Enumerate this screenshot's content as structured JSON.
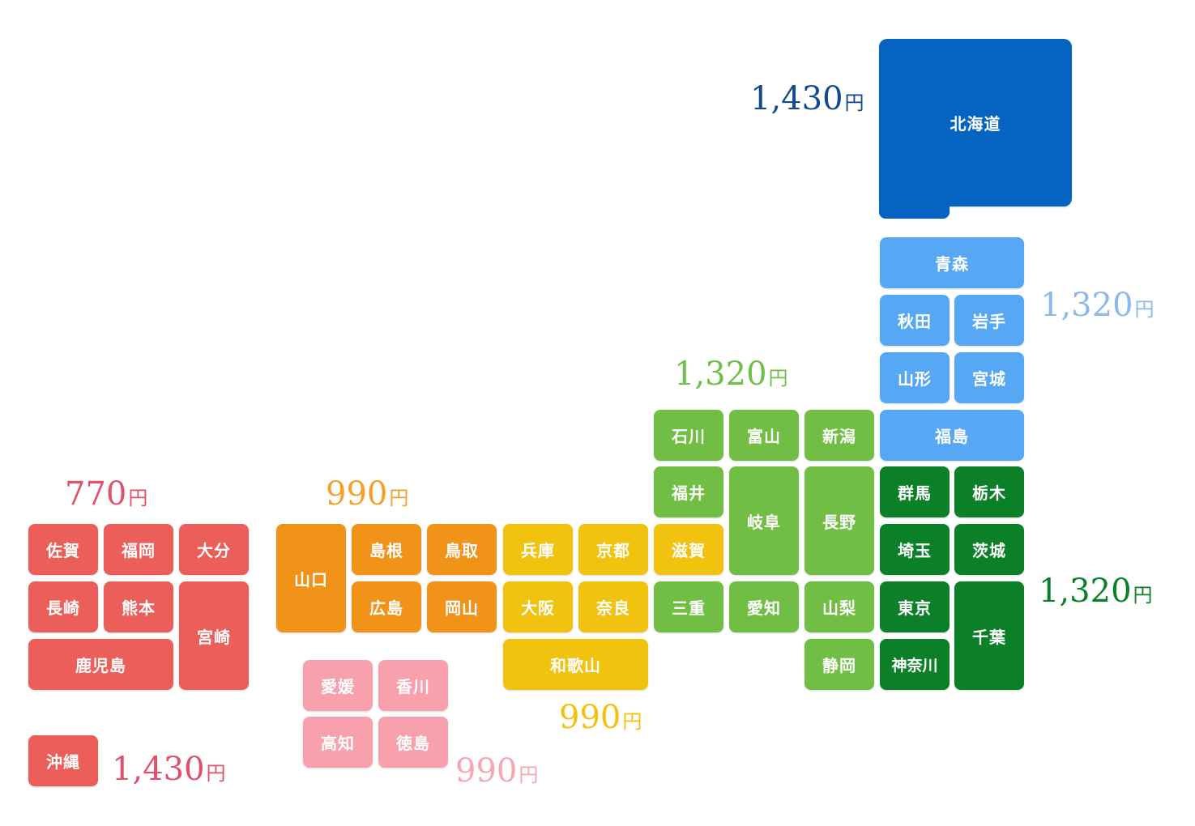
{
  "colors": {
    "hokkaido": "#0563c1",
    "tohoku": "#56a8f5",
    "kanto": "#0c8029",
    "chubu": "#70bf44",
    "kinki": "#f1c30e",
    "chugoku": "#f29319",
    "shikoku": "#f8a0ab",
    "kyushu": "#eb5e5a",
    "price_kyushu": "#e1516b"
  },
  "prices": {
    "hokkaido": {
      "value": "1,430",
      "unit": "円"
    },
    "tohoku": {
      "value": "1,320",
      "unit": "円"
    },
    "chubu": {
      "value": "1,320",
      "unit": "円"
    },
    "kanto": {
      "value": "1,320",
      "unit": "円"
    },
    "kinki": {
      "value": "990",
      "unit": "円"
    },
    "chugoku": {
      "value": "990",
      "unit": "円"
    },
    "shikoku": {
      "value": "990",
      "unit": "円"
    },
    "kyushu": {
      "value": "770",
      "unit": "円"
    },
    "okinawa": {
      "value": "1,430",
      "unit": "円"
    }
  },
  "prefectures": {
    "hokkaido": "北海道",
    "aomori": "青森",
    "akita": "秋田",
    "iwate": "岩手",
    "yamagata": "山形",
    "miyagi": "宮城",
    "fukushima": "福島",
    "gunma": "群馬",
    "tochigi": "栃木",
    "saitama": "埼玉",
    "ibaraki": "茨城",
    "tokyo": "東京",
    "kanagawa": "神奈川",
    "chiba": "千葉",
    "ishikawa": "石川",
    "toyama": "富山",
    "niigata": "新潟",
    "fukui": "福井",
    "gifu": "岐阜",
    "nagano": "長野",
    "aichi": "愛知",
    "yamanashi": "山梨",
    "shizuoka": "静岡",
    "shiga": "滋賀",
    "mie": "三重",
    "hyogo": "兵庫",
    "kyoto": "京都",
    "osaka": "大阪",
    "nara": "奈良",
    "wakayama": "和歌山",
    "yamaguchi": "山口",
    "shimane": "島根",
    "tottori": "鳥取",
    "hiroshima": "広島",
    "okayama": "岡山",
    "ehime": "愛媛",
    "kagawa": "香川",
    "kochi": "高知",
    "tokushima": "徳島",
    "saga": "佐賀",
    "fukuoka": "福岡",
    "oita": "大分",
    "nagasaki": "長崎",
    "kumamoto": "熊本",
    "miyazaki": "宮崎",
    "kagoshima": "鹿児島",
    "okinawa": "沖縄"
  }
}
